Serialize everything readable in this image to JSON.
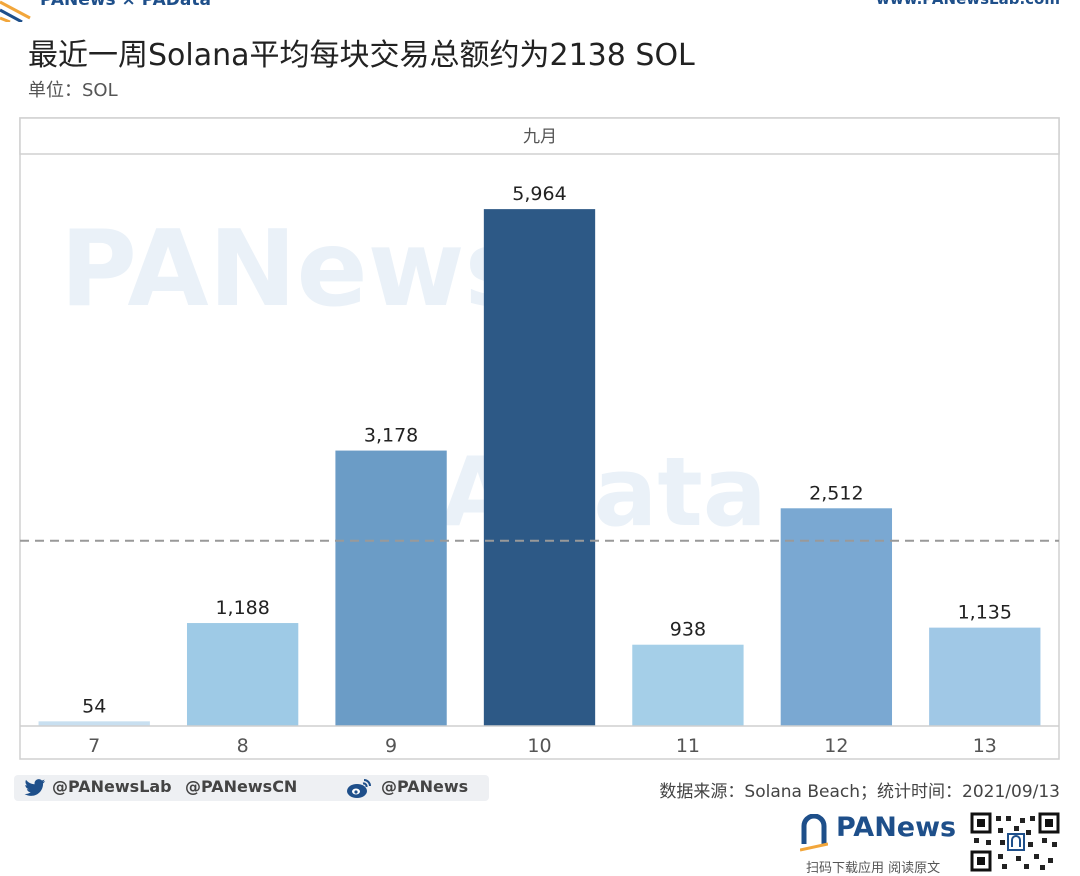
{
  "header": {
    "brand_left": "PANews × PAData",
    "brand_right": "www.PANewsLab.com"
  },
  "title": "最近一周Solana平均每块交易总额约为2138 SOL",
  "subtitle": "单位：SOL",
  "watermarks": [
    "PANews",
    "PAData"
  ],
  "chart_data": {
    "type": "bar",
    "panel_header": "九月",
    "categories": [
      "7",
      "8",
      "9",
      "10",
      "11",
      "12",
      "13"
    ],
    "values": [
      54,
      1188,
      3178,
      5964,
      938,
      2512,
      1135
    ],
    "value_labels": [
      "54",
      "1,188",
      "3,178",
      "5,964",
      "938",
      "2,512",
      "1,135"
    ],
    "reference_line": 2138,
    "ylim": [
      0,
      6600
    ],
    "colors": [
      "#c8dff0",
      "#9ecae6",
      "#6b9cc6",
      "#2d5986",
      "#a5cfe8",
      "#7aa8d2",
      "#a0c8e6"
    ],
    "reference_line_color": "#999999",
    "grid": false,
    "xlabel": "",
    "ylabel": ""
  },
  "footer": {
    "twitter_1": "@PANewsLab",
    "twitter_2": "@PANewsCN",
    "weibo": "@PANews",
    "source": "数据来源：Solana Beach；统计时间：2021/09/13"
  },
  "bottom_logo": {
    "name": "PANews",
    "scan_text": "扫码下载应用 阅读原文"
  },
  "icons": {
    "twitter": "twitter-icon",
    "weibo": "weibo-icon",
    "qr": "qr-code"
  }
}
